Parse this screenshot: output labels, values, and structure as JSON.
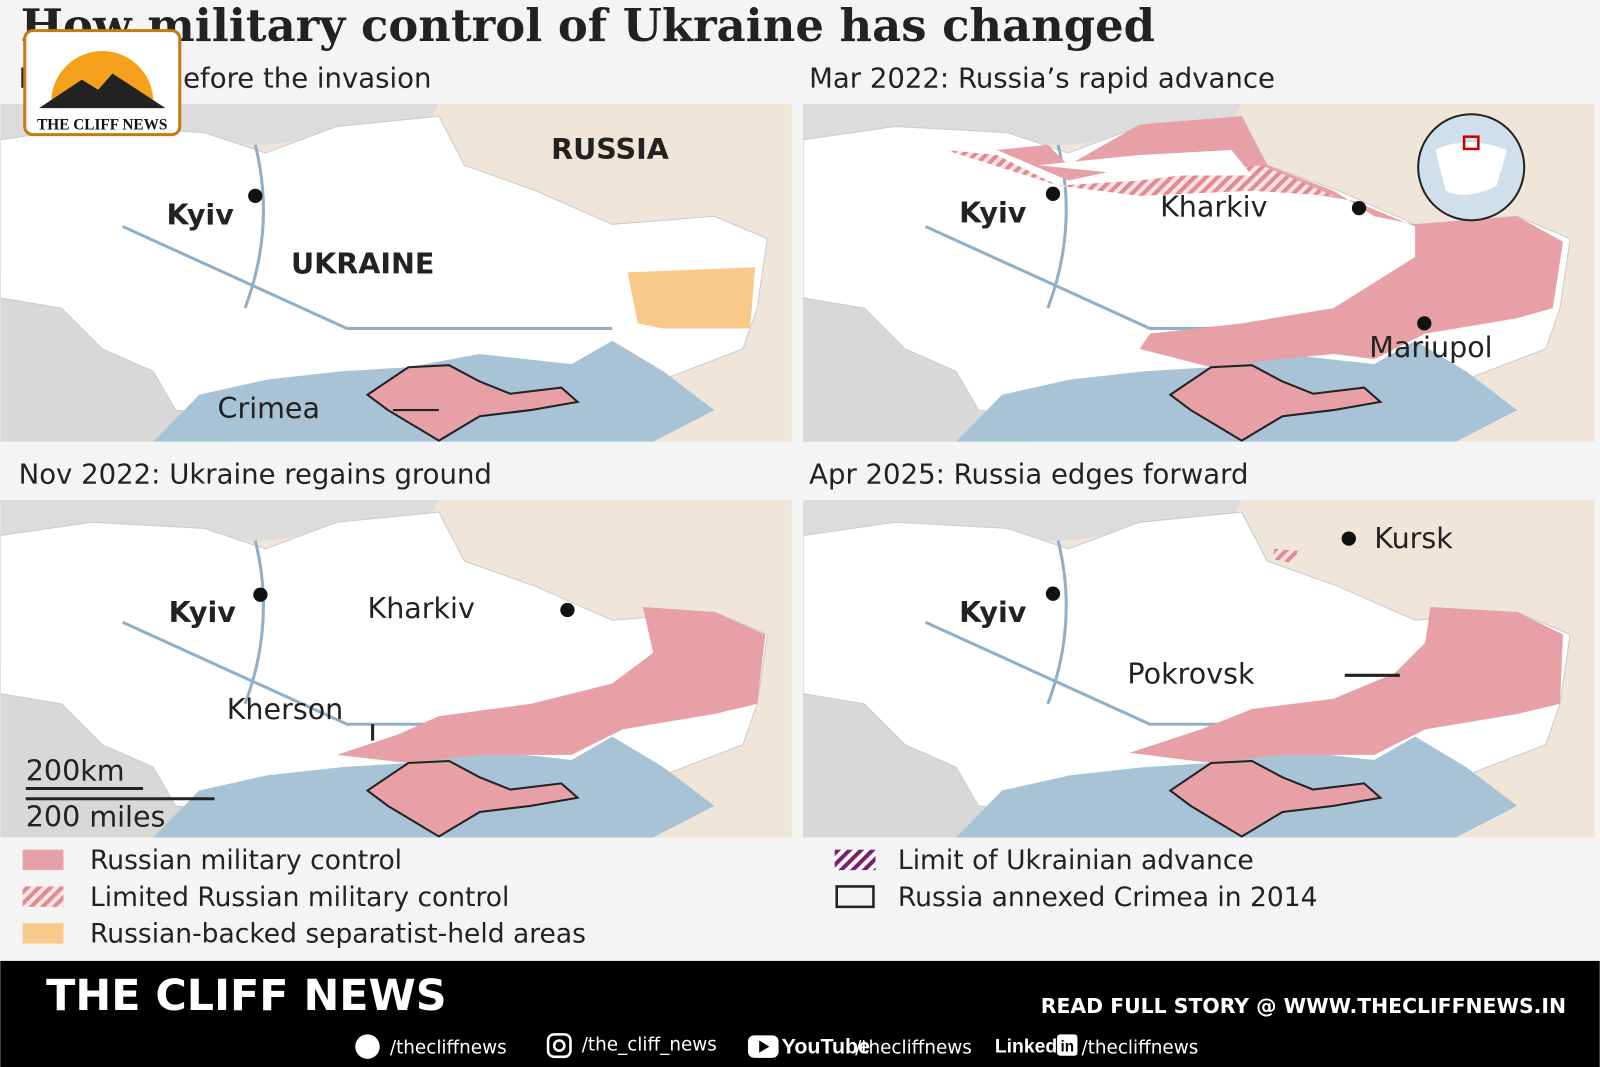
{
  "title": "How military control of Ukraine has changed",
  "logo": {
    "text": "THE CLIFF NEWS"
  },
  "panels": [
    {
      "heading": "Feb 2022: Before the invasion",
      "labels": [
        "Kyiv",
        "RUSSIA",
        "UKRAINE",
        "Crimea"
      ]
    },
    {
      "heading": "Mar 2022: Russia’s rapid advance",
      "labels": [
        "Kyiv",
        "Kharkiv",
        "Mariupol"
      ]
    },
    {
      "heading": "Nov 2022: Ukraine regains ground",
      "labels": [
        "Kyiv",
        "Kharkiv",
        "Kherson"
      ],
      "scale": [
        "200km",
        "200 miles"
      ]
    },
    {
      "heading": "Apr 2025: Russia edges forward",
      "labels": [
        "Kyiv",
        "Kursk",
        "Pokrovsk"
      ]
    }
  ],
  "legend": [
    "Russian military control",
    "Limited Russian military control",
    "Russian-backed separatist-held areas",
    "Limit of Ukrainian advance",
    "Russia annexed Crimea in 2014"
  ],
  "footer": {
    "brand": "THE CLIFF NEWS",
    "cta": "READ FULL STORY @ WWW.THECLIFFNEWS.IN",
    "social": [
      {
        "handle": "/thecliffnews"
      },
      {
        "handle": "/the_cliff_news"
      },
      {
        "brand": "YouTube",
        "handle": "/thecliffnews"
      },
      {
        "brand": "Linked",
        "icon": "in",
        "handle": "/thecliffnews"
      }
    ]
  }
}
